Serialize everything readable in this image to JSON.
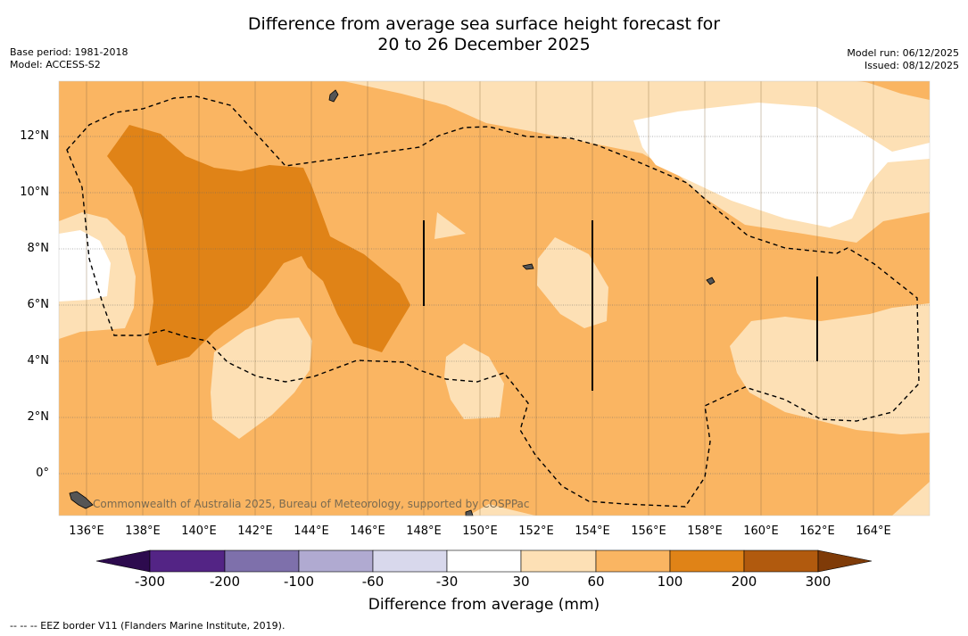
{
  "title": {
    "line1": "Difference from average sea surface height forecast for",
    "line2": "20 to 26 December 2025"
  },
  "meta": {
    "base_period": "Base period: 1981-2018",
    "model": "Model: ACCESS-S2",
    "model_run": "Model run: 06/12/2025",
    "issued": "Issued: 08/12/2025"
  },
  "map": {
    "lon_ticks": [
      "136°E",
      "138°E",
      "140°E",
      "142°E",
      "144°E",
      "146°E",
      "148°E",
      "150°E",
      "152°E",
      "154°E",
      "156°E",
      "158°E",
      "160°E",
      "162°E",
      "164°E"
    ],
    "lat_ticks": [
      "12°N",
      "10°N",
      "8°N",
      "6°N",
      "4°N",
      "2°N",
      "0°"
    ],
    "credit": "Commonwealth of Australia 2025, Bureau of Meteorology, supported by COSPPac"
  },
  "colorbar": {
    "title": "Difference from average (mm)",
    "labels": [
      "-300",
      "-200",
      "-100",
      "-60",
      "-30",
      "30",
      "60",
      "100",
      "200",
      "300"
    ],
    "colors": {
      "below": "#2d0b4e",
      "c1": "#532485",
      "c2": "#7e70ab",
      "c3": "#b0aad1",
      "c4": "#d8d8ec",
      "c5": "#ffffff",
      "c6": "#fde0b5",
      "c7": "#fab562",
      "c8": "#e08317",
      "c9": "#b15a0e",
      "above": "#7f3b08"
    }
  },
  "footnote": "--  --  -- EEZ border V11 (Flanders Marine Institute, 2019)."
}
